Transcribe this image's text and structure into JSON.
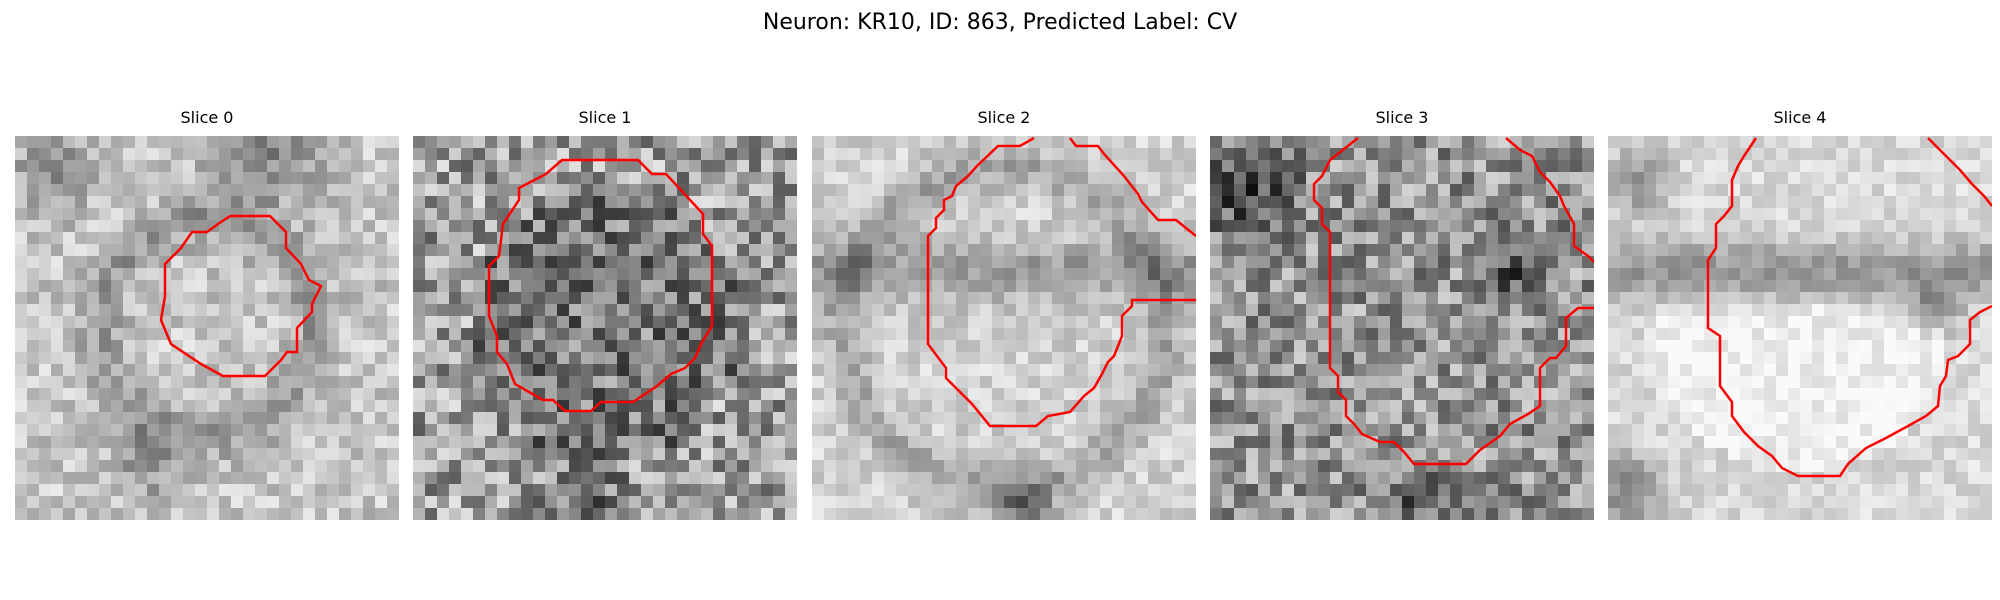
{
  "figure": {
    "title": "Neuron: KR10, ID: 863, Predicted Label: CV",
    "contour_color": "#ff0000"
  },
  "panels": [
    {
      "title": "Slice 0",
      "seed": 11,
      "pattern": "center-dark"
    },
    {
      "title": "Slice 1",
      "seed": 23,
      "pattern": "noisy"
    },
    {
      "title": "Slice 2",
      "seed": 37,
      "pattern": "bright-band"
    },
    {
      "title": "Slice 3",
      "seed": 51,
      "pattern": "noisy-dark"
    },
    {
      "title": "Slice 4",
      "seed": 67,
      "pattern": "bright-lower"
    }
  ]
}
